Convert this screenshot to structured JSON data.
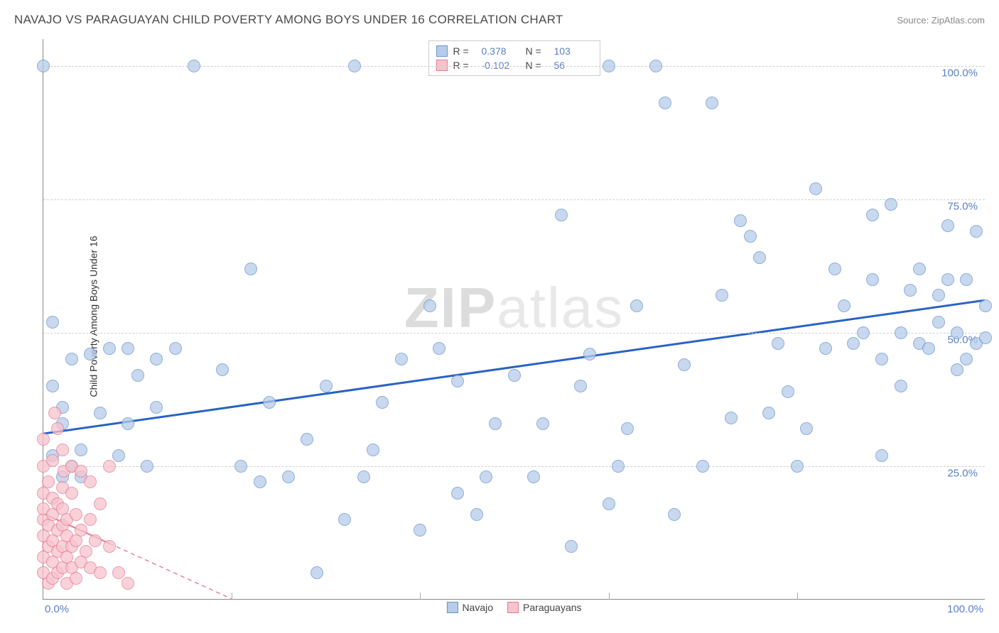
{
  "header": {
    "title": "NAVAJO VS PARAGUAYAN CHILD POVERTY AMONG BOYS UNDER 16 CORRELATION CHART",
    "source": "Source: ZipAtlas.com"
  },
  "chart": {
    "type": "scatter",
    "ylabel": "Child Poverty Among Boys Under 16",
    "xlim": [
      0,
      100
    ],
    "ylim": [
      0,
      105
    ],
    "yticks": [
      {
        "value": 25,
        "label": "25.0%"
      },
      {
        "value": 50,
        "label": "50.0%"
      },
      {
        "value": 75,
        "label": "75.0%"
      },
      {
        "value": 100,
        "label": "100.0%"
      }
    ],
    "xticks_minor": [
      20,
      40,
      60,
      80
    ],
    "xtick_labels": {
      "min": "0.0%",
      "max": "100.0%"
    },
    "watermark": {
      "bold": "ZIP",
      "light": "atlas"
    },
    "series": [
      {
        "name": "Navajo",
        "fill": "#b6cce9",
        "stroke": "#6a94cf",
        "opacity": 0.75,
        "marker_size": 18,
        "trend": {
          "x1": 0,
          "y1": 31,
          "x2": 100,
          "y2": 56,
          "color": "#2962c7",
          "width": 3,
          "solid_until": 100
        },
        "points": [
          [
            0,
            100
          ],
          [
            1,
            52
          ],
          [
            1,
            27
          ],
          [
            1,
            40
          ],
          [
            2,
            36
          ],
          [
            2,
            23
          ],
          [
            2,
            33
          ],
          [
            3,
            25
          ],
          [
            3,
            45
          ],
          [
            4,
            23
          ],
          [
            4,
            28
          ],
          [
            5,
            46
          ],
          [
            6,
            35
          ],
          [
            7,
            47
          ],
          [
            8,
            27
          ],
          [
            9,
            47
          ],
          [
            9,
            33
          ],
          [
            10,
            42
          ],
          [
            11,
            25
          ],
          [
            12,
            45
          ],
          [
            12,
            36
          ],
          [
            14,
            47
          ],
          [
            16,
            100
          ],
          [
            19,
            43
          ],
          [
            21,
            25
          ],
          [
            22,
            62
          ],
          [
            23,
            22
          ],
          [
            24,
            37
          ],
          [
            26,
            23
          ],
          [
            28,
            30
          ],
          [
            29,
            5
          ],
          [
            30,
            40
          ],
          [
            32,
            15
          ],
          [
            33,
            100
          ],
          [
            34,
            23
          ],
          [
            35,
            28
          ],
          [
            36,
            37
          ],
          [
            38,
            45
          ],
          [
            40,
            13
          ],
          [
            41,
            55
          ],
          [
            42,
            47
          ],
          [
            44,
            41
          ],
          [
            44,
            20
          ],
          [
            46,
            16
          ],
          [
            47,
            23
          ],
          [
            48,
            33
          ],
          [
            50,
            42
          ],
          [
            52,
            23
          ],
          [
            53,
            33
          ],
          [
            55,
            72
          ],
          [
            56,
            10
          ],
          [
            57,
            40
          ],
          [
            58,
            46
          ],
          [
            60,
            18
          ],
          [
            60,
            100
          ],
          [
            61,
            25
          ],
          [
            62,
            32
          ],
          [
            63,
            55
          ],
          [
            65,
            100
          ],
          [
            66,
            93
          ],
          [
            67,
            16
          ],
          [
            68,
            44
          ],
          [
            70,
            25
          ],
          [
            71,
            93
          ],
          [
            72,
            57
          ],
          [
            73,
            34
          ],
          [
            74,
            71
          ],
          [
            75,
            68
          ],
          [
            76,
            64
          ],
          [
            77,
            35
          ],
          [
            78,
            48
          ],
          [
            79,
            39
          ],
          [
            80,
            25
          ],
          [
            81,
            32
          ],
          [
            82,
            77
          ],
          [
            83,
            47
          ],
          [
            84,
            62
          ],
          [
            85,
            55
          ],
          [
            86,
            48
          ],
          [
            87,
            50
          ],
          [
            88,
            60
          ],
          [
            88,
            72
          ],
          [
            89,
            45
          ],
          [
            89,
            27
          ],
          [
            90,
            74
          ],
          [
            91,
            40
          ],
          [
            91,
            50
          ],
          [
            92,
            58
          ],
          [
            93,
            48
          ],
          [
            93,
            62
          ],
          [
            94,
            47
          ],
          [
            95,
            52
          ],
          [
            95,
            57
          ],
          [
            96,
            60
          ],
          [
            96,
            70
          ],
          [
            97,
            50
          ],
          [
            97,
            43
          ],
          [
            98,
            45
          ],
          [
            98,
            60
          ],
          [
            99,
            48
          ],
          [
            99,
            69
          ],
          [
            100,
            55
          ],
          [
            100,
            49
          ]
        ]
      },
      {
        "name": "Paraguayans",
        "fill": "#f7c3cd",
        "stroke": "#e77a93",
        "opacity": 0.75,
        "marker_size": 18,
        "trend": {
          "x1": 0,
          "y1": 16,
          "x2": 20,
          "y2": 0,
          "color": "#e77a93",
          "width": 2,
          "solid_until": 7
        },
        "points": [
          [
            0,
            5
          ],
          [
            0,
            8
          ],
          [
            0,
            12
          ],
          [
            0,
            15
          ],
          [
            0,
            17
          ],
          [
            0,
            20
          ],
          [
            0,
            25
          ],
          [
            0,
            30
          ],
          [
            0.5,
            3
          ],
          [
            0.5,
            10
          ],
          [
            0.5,
            14
          ],
          [
            0.5,
            22
          ],
          [
            1,
            4
          ],
          [
            1,
            7
          ],
          [
            1,
            11
          ],
          [
            1,
            16
          ],
          [
            1,
            19
          ],
          [
            1,
            26
          ],
          [
            1.2,
            35
          ],
          [
            1.5,
            5
          ],
          [
            1.5,
            9
          ],
          [
            1.5,
            13
          ],
          [
            1.5,
            18
          ],
          [
            1.5,
            32
          ],
          [
            2,
            6
          ],
          [
            2,
            10
          ],
          [
            2,
            14
          ],
          [
            2,
            17
          ],
          [
            2,
            21
          ],
          [
            2,
            28
          ],
          [
            2.2,
            24
          ],
          [
            2.5,
            3
          ],
          [
            2.5,
            8
          ],
          [
            2.5,
            12
          ],
          [
            2.5,
            15
          ],
          [
            3,
            6
          ],
          [
            3,
            10
          ],
          [
            3,
            20
          ],
          [
            3,
            25
          ],
          [
            3.5,
            4
          ],
          [
            3.5,
            11
          ],
          [
            3.5,
            16
          ],
          [
            4,
            7
          ],
          [
            4,
            13
          ],
          [
            4,
            24
          ],
          [
            4.5,
            9
          ],
          [
            5,
            6
          ],
          [
            5,
            15
          ],
          [
            5,
            22
          ],
          [
            5.5,
            11
          ],
          [
            6,
            5
          ],
          [
            6,
            18
          ],
          [
            7,
            10
          ],
          [
            7,
            25
          ],
          [
            8,
            5
          ],
          [
            9,
            3
          ]
        ]
      }
    ],
    "legend_top": [
      {
        "series": 0,
        "r_label": "R =",
        "r": "0.378",
        "n_label": "N =",
        "n": "103"
      },
      {
        "series": 1,
        "r_label": "R =",
        "r": "-0.102",
        "n_label": "N =",
        "n": "56"
      }
    ],
    "legend_bottom": [
      {
        "series": 0,
        "label": "Navajo"
      },
      {
        "series": 1,
        "label": "Paraguayans"
      }
    ]
  }
}
